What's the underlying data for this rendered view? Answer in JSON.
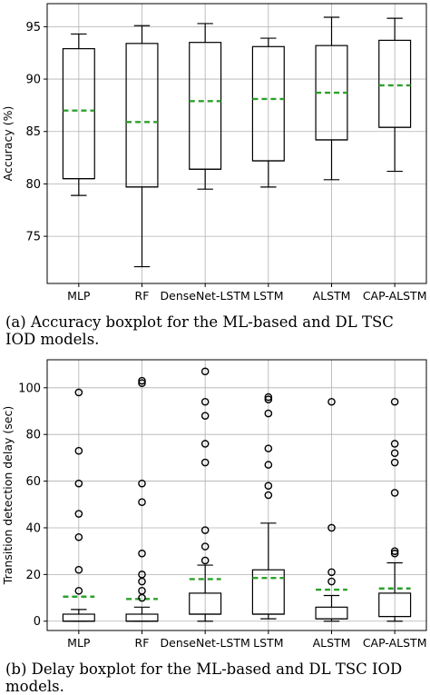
{
  "chart_data": [
    {
      "type": "box",
      "categories": [
        "MLP",
        "RF",
        "DenseNet-LSTM",
        "LSTM",
        "ALSTM",
        "CAP-ALSTM"
      ],
      "ylabel": "Accuracy (%)",
      "xlabel": "",
      "ylim": [
        70.5,
        97.2
      ],
      "yticks": [
        75,
        80,
        85,
        90,
        95
      ],
      "grid": true,
      "mean_line": "dashed-green",
      "boxes": [
        {
          "whislo": 78.9,
          "q1": 80.5,
          "med": 80.5,
          "q3": 92.9,
          "whishi": 94.3,
          "mean": 87.0,
          "fliers": []
        },
        {
          "whislo": 72.1,
          "q1": 79.7,
          "med": 79.7,
          "q3": 93.4,
          "whishi": 95.1,
          "mean": 85.9,
          "fliers": []
        },
        {
          "whislo": 79.5,
          "q1": 81.4,
          "med": 81.4,
          "q3": 93.5,
          "whishi": 95.3,
          "mean": 87.9,
          "fliers": []
        },
        {
          "whislo": 79.7,
          "q1": 82.2,
          "med": 82.2,
          "q3": 93.1,
          "whishi": 93.9,
          "mean": 88.1,
          "fliers": []
        },
        {
          "whislo": 80.4,
          "q1": 84.2,
          "med": 84.2,
          "q3": 93.2,
          "whishi": 95.9,
          "mean": 88.7,
          "fliers": []
        },
        {
          "whislo": 81.2,
          "q1": 85.4,
          "med": 85.4,
          "q3": 93.7,
          "whishi": 95.8,
          "mean": 89.4,
          "fliers": []
        }
      ],
      "caption": "(a) Accuracy boxplot for the ML-based and DL TSC IOD models."
    },
    {
      "type": "box",
      "categories": [
        "MLP",
        "RF",
        "DenseNet-LSTM",
        "LSTM",
        "ALSTM",
        "CAP-ALSTM"
      ],
      "ylabel": "Transition detection delay (sec)",
      "xlabel": "",
      "ylim": [
        -4,
        112
      ],
      "yticks": [
        0,
        20,
        40,
        60,
        80,
        100
      ],
      "grid": true,
      "mean_line": "dashed-green",
      "boxes": [
        {
          "whislo": 0,
          "q1": 0,
          "med": 0,
          "q3": 3,
          "whishi": 5,
          "mean": 10.5,
          "fliers": [
            13,
            22,
            36,
            46,
            59,
            73,
            98
          ]
        },
        {
          "whislo": 0,
          "q1": 0,
          "med": 0,
          "q3": 3,
          "whishi": 6,
          "mean": 9.5,
          "fliers": [
            10,
            13,
            17,
            20,
            29,
            51,
            59,
            102,
            103
          ]
        },
        {
          "whislo": 0,
          "q1": 3,
          "med": 3,
          "q3": 12,
          "whishi": 24,
          "mean": 18.0,
          "fliers": [
            26,
            32,
            39,
            68,
            76,
            88,
            94,
            107
          ]
        },
        {
          "whislo": 1,
          "q1": 3,
          "med": 3,
          "q3": 22,
          "whishi": 42,
          "mean": 18.5,
          "fliers": [
            54,
            58,
            67,
            74,
            89,
            95,
            96
          ]
        },
        {
          "whislo": 0,
          "q1": 1,
          "med": 1,
          "q3": 6,
          "whishi": 11,
          "mean": 13.5,
          "fliers": [
            17,
            21,
            40,
            94
          ]
        },
        {
          "whislo": 0,
          "q1": 2,
          "med": 2,
          "q3": 12,
          "whishi": 25,
          "mean": 14.0,
          "fliers": [
            29,
            30,
            55,
            68,
            72,
            76,
            94
          ]
        }
      ],
      "caption": "(b) Delay boxplot for the ML-based and DL TSC IOD models."
    }
  ]
}
